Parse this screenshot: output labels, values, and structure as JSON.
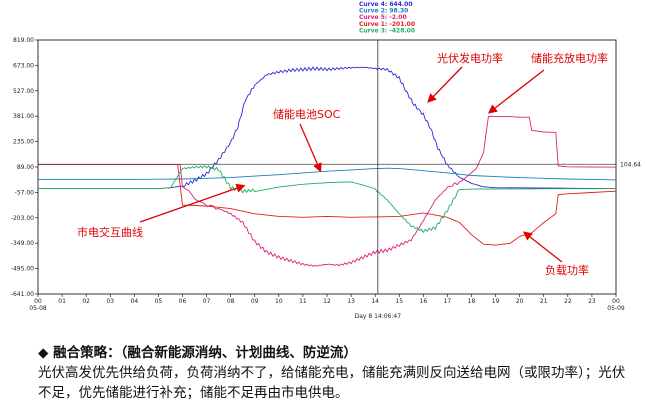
{
  "chart_data": {
    "type": "line",
    "legend_position": "top",
    "legend": [
      {
        "label": "Curve 4: 644.00",
        "color": "#2b2bd8"
      },
      {
        "label": "Curve 2: 98.30",
        "color": "#1a7fbf"
      },
      {
        "label": "Curve 5: -2.00",
        "color": "#e0207a"
      },
      {
        "label": "Curve 1: -201.00",
        "color": "#e02020"
      },
      {
        "label": "Curve 3: -428.00",
        "color": "#20b060"
      }
    ],
    "y_ticks": [
      "819.00",
      "673.00",
      "527.00",
      "381.00",
      "235.00",
      "89.00",
      "-57.00",
      "-203.00",
      "-349.00",
      "-495.00",
      "-641.00"
    ],
    "x_ticks": [
      "00",
      "01",
      "02",
      "03",
      "04",
      "05",
      "06",
      "07",
      "08",
      "09",
      "10",
      "11",
      "12",
      "13",
      "14",
      "15",
      "16",
      "17",
      "18",
      "19",
      "20",
      "21",
      "22",
      "23",
      "00"
    ],
    "x_tick_sub": {
      "first": "05-08",
      "last": "05-09"
    },
    "cursor_label": "Day 8 14:06:47",
    "cursor_hour": 14.11,
    "hline_value": 104.64,
    "hline_label": "104.64",
    "xlim": [
      0,
      24
    ],
    "ylim": [
      -641,
      819
    ],
    "grid": false,
    "series": [
      {
        "color": "#2b2bd8",
        "points": [
          [
            0,
            -35
          ],
          [
            5,
            -35
          ],
          [
            5.5,
            -30
          ],
          [
            6,
            -20
          ],
          [
            6.5,
            10
          ],
          [
            7,
            50
          ],
          [
            7.5,
            130
          ],
          [
            8,
            230
          ],
          [
            8.3,
            320
          ],
          [
            8.6,
            470
          ],
          [
            9,
            560
          ],
          [
            9.5,
            620
          ],
          [
            10,
            635
          ],
          [
            10.5,
            645
          ],
          [
            11,
            650
          ],
          [
            11.5,
            655
          ],
          [
            12,
            650
          ],
          [
            12.5,
            655
          ],
          [
            13,
            660
          ],
          [
            13.5,
            662
          ],
          [
            14,
            655
          ],
          [
            14.5,
            650
          ],
          [
            15,
            600
          ],
          [
            15.3,
            520
          ],
          [
            15.6,
            450
          ],
          [
            16,
            390
          ],
          [
            16.3,
            310
          ],
          [
            16.6,
            200
          ],
          [
            17,
            100
          ],
          [
            17.5,
            30
          ],
          [
            18,
            -5
          ],
          [
            18.5,
            -25
          ],
          [
            19,
            -30
          ],
          [
            24,
            -35
          ]
        ]
      },
      {
        "color": "#1a7fbf",
        "points": [
          [
            0,
            18
          ],
          [
            4,
            18
          ],
          [
            6,
            20
          ],
          [
            8,
            28
          ],
          [
            10,
            45
          ],
          [
            12,
            65
          ],
          [
            14,
            80
          ],
          [
            14.5,
            82
          ],
          [
            15,
            80
          ],
          [
            16,
            68
          ],
          [
            17,
            55
          ],
          [
            18,
            40
          ],
          [
            20,
            28
          ],
          [
            22,
            20
          ],
          [
            24,
            15
          ]
        ]
      },
      {
        "color": "#e0207a",
        "points": [
          [
            0,
            104
          ],
          [
            5.9,
            104
          ],
          [
            6,
            -25
          ],
          [
            6.8,
            -120
          ],
          [
            7.5,
            -150
          ],
          [
            8,
            -180
          ],
          [
            8.5,
            -230
          ],
          [
            9,
            -340
          ],
          [
            9.5,
            -400
          ],
          [
            10,
            -430
          ],
          [
            10.5,
            -450
          ],
          [
            11,
            -470
          ],
          [
            11.5,
            -480
          ],
          [
            12,
            -470
          ],
          [
            12.5,
            -475
          ],
          [
            13,
            -460
          ],
          [
            13.5,
            -430
          ],
          [
            14,
            -400
          ],
          [
            14.5,
            -390
          ],
          [
            15,
            -360
          ],
          [
            15.5,
            -330
          ],
          [
            16,
            -220
          ],
          [
            16.5,
            -100
          ],
          [
            17,
            -30
          ],
          [
            17.6,
            10
          ],
          [
            18.2,
            80
          ],
          [
            18.5,
            170
          ],
          [
            18.7,
            380
          ],
          [
            19,
            380
          ],
          [
            19.5,
            380
          ],
          [
            20,
            375
          ],
          [
            20.4,
            375
          ],
          [
            20.5,
            300
          ],
          [
            21,
            290
          ],
          [
            21.5,
            288
          ],
          [
            21.6,
            95
          ],
          [
            22,
            90
          ],
          [
            24,
            88
          ]
        ]
      },
      {
        "color": "#e02020",
        "points": [
          [
            0,
            104
          ],
          [
            5.8,
            104
          ],
          [
            6,
            -130
          ],
          [
            7,
            -135
          ],
          [
            8,
            -150
          ],
          [
            9,
            -180
          ],
          [
            10,
            -195
          ],
          [
            11,
            -200
          ],
          [
            12,
            -195
          ],
          [
            13,
            -200
          ],
          [
            14,
            -198
          ],
          [
            15,
            -195
          ],
          [
            16,
            -175
          ],
          [
            17,
            -200
          ],
          [
            17.5,
            -230
          ],
          [
            18,
            -300
          ],
          [
            18.5,
            -355
          ],
          [
            19,
            -360
          ],
          [
            19.6,
            -350
          ],
          [
            20,
            -310
          ],
          [
            20.5,
            -290
          ],
          [
            21,
            -230
          ],
          [
            21.5,
            -180
          ],
          [
            21.6,
            -70
          ],
          [
            22,
            -65
          ],
          [
            24,
            -50
          ]
        ]
      },
      {
        "color": "#20b060",
        "points": [
          [
            0,
            -35
          ],
          [
            5,
            -35
          ],
          [
            5.5,
            -30
          ],
          [
            6,
            80
          ],
          [
            6.5,
            88
          ],
          [
            7,
            90
          ],
          [
            7.5,
            75
          ],
          [
            8,
            -30
          ],
          [
            8.5,
            -50
          ],
          [
            9,
            -45
          ],
          [
            10,
            -25
          ],
          [
            11,
            -15
          ],
          [
            12,
            -10
          ],
          [
            13,
            -5
          ],
          [
            14,
            -40
          ],
          [
            14.5,
            -100
          ],
          [
            15,
            -180
          ],
          [
            15.5,
            -250
          ],
          [
            16,
            -280
          ],
          [
            16.5,
            -260
          ],
          [
            17,
            -160
          ],
          [
            17.5,
            -40
          ],
          [
            18,
            -38
          ],
          [
            24,
            -35
          ]
        ]
      }
    ]
  },
  "annotations": {
    "pv": "光伏发电功率",
    "storage": "储能充放电功率",
    "soc": "储能电池SOC",
    "grid": "市电交互曲线",
    "load": "负载功率"
  },
  "strategy": {
    "title": "◆ 融合策略：（融合新能源消纳、计划曲线、防逆流）",
    "body": "光伏高发优先供给负荷，负荷消纳不了，给储能充电，储能充满则反向送给电网（或限功率）；光伏不足，优先储能进行补充；储能不足再由市电供电。"
  }
}
